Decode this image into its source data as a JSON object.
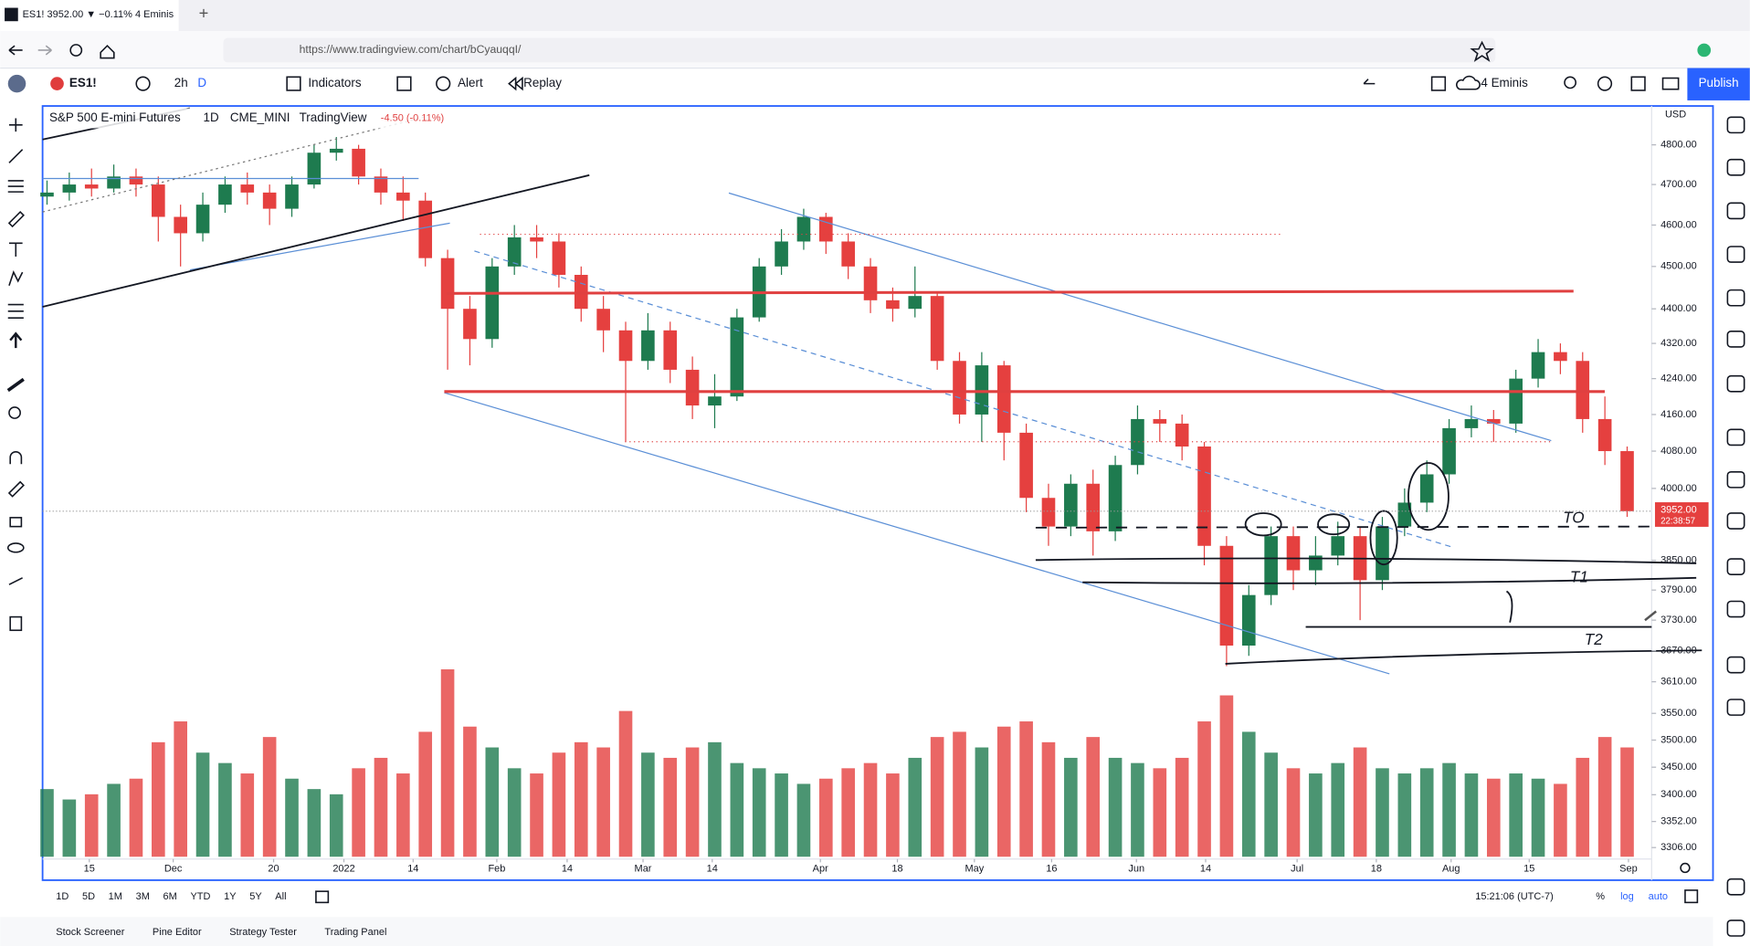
{
  "browser": {
    "tab_title": "ES1! 3952.00 ▼ −0.11% 4 Eminis",
    "url": "https://www.tradingview.com/chart/bCyauqqI/"
  },
  "toolbar": {
    "symbol": "ES1!",
    "interval": "2h",
    "interval_alt": "D",
    "indicators": "Indicators",
    "alert": "Alert",
    "replay": "Replay",
    "layout": "4 Eminis",
    "publish": "Publish"
  },
  "chart_data": {
    "type": "candlestick",
    "title": "S&P 500 E-mini Futures",
    "interval": "1D",
    "exchange": "CME_MINI",
    "source": "TradingView",
    "change": "-4.50 (-0.11%)",
    "currency": "USD",
    "open": [
      4670,
      4680,
      4700,
      4690,
      4720,
      4700,
      4620,
      4580,
      4650,
      4700,
      4680,
      4640,
      4700,
      4780,
      4790,
      4720,
      4680,
      4660,
      4520,
      4400,
      4330,
      4500,
      4570,
      4560,
      4480,
      4400,
      4350,
      4280,
      4350,
      4260,
      4180,
      4200,
      4380,
      4500,
      4560,
      4620,
      4560,
      4500,
      4420,
      4400,
      4430,
      4280,
      4160,
      4270,
      4120,
      3980,
      3920,
      4010,
      3910,
      4050,
      4150,
      4140,
      4090,
      3880,
      3680,
      3780,
      3900,
      3830,
      3860,
      3900,
      3810,
      3920,
      3970,
      4030,
      4130,
      4150,
      4140,
      4240,
      4300,
      4280,
      4150,
      4080
    ],
    "high": [
      4710,
      4730,
      4740,
      4750,
      4740,
      4720,
      4650,
      4680,
      4720,
      4730,
      4700,
      4720,
      4800,
      4820,
      4800,
      4740,
      4720,
      4680,
      4540,
      4430,
      4520,
      4600,
      4600,
      4580,
      4500,
      4430,
      4370,
      4390,
      4370,
      4290,
      4250,
      4400,
      4520,
      4590,
      4640,
      4630,
      4580,
      4520,
      4450,
      4500,
      4440,
      4300,
      4300,
      4280,
      4140,
      4010,
      4030,
      4040,
      4070,
      4180,
      4170,
      4160,
      4100,
      3900,
      3800,
      3920,
      3920,
      3900,
      3930,
      3920,
      3940,
      4000,
      4060,
      4150,
      4180,
      4170,
      4260,
      4330,
      4320,
      4300,
      4200,
      4090
    ],
    "low": [
      4650,
      4660,
      4670,
      4680,
      4670,
      4560,
      4500,
      4560,
      4630,
      4650,
      4600,
      4620,
      4690,
      4760,
      4700,
      4650,
      4610,
      4500,
      4260,
      4270,
      4310,
      4480,
      4520,
      4450,
      4370,
      4300,
      4100,
      4260,
      4230,
      4150,
      4130,
      4190,
      4370,
      4480,
      4540,
      4530,
      4470,
      4390,
      4370,
      4380,
      4260,
      4140,
      4100,
      4060,
      3950,
      3880,
      3900,
      3860,
      3890,
      4030,
      4100,
      4060,
      3840,
      3640,
      3660,
      3760,
      3790,
      3800,
      3840,
      3730,
      3790,
      3900,
      3950,
      4010,
      4110,
      4100,
      4120,
      4220,
      4250,
      4120,
      4050,
      3940
    ],
    "close": [
      4680,
      4700,
      4690,
      4720,
      4700,
      4620,
      4580,
      4650,
      4700,
      4680,
      4640,
      4700,
      4780,
      4790,
      4720,
      4680,
      4660,
      4520,
      4400,
      4330,
      4500,
      4570,
      4560,
      4480,
      4400,
      4350,
      4280,
      4350,
      4260,
      4180,
      4200,
      4380,
      4500,
      4560,
      4620,
      4560,
      4500,
      4420,
      4400,
      4430,
      4280,
      4160,
      4270,
      4120,
      3980,
      3920,
      4010,
      3910,
      4050,
      4150,
      4140,
      4090,
      3880,
      3680,
      3780,
      3900,
      3830,
      3860,
      3900,
      3810,
      3920,
      3970,
      4030,
      4130,
      4150,
      4140,
      4240,
      4300,
      4280,
      4150,
      4080,
      3952
    ],
    "volume": [
      1300,
      1100,
      1200,
      1400,
      1500,
      2200,
      2600,
      2000,
      1800,
      1600,
      2300,
      1500,
      1300,
      1200,
      1700,
      1900,
      1600,
      2400,
      3600,
      2500,
      2100,
      1700,
      1600,
      2000,
      2200,
      2100,
      2800,
      2000,
      1900,
      2100,
      2200,
      1800,
      1700,
      1600,
      1400,
      1500,
      1700,
      1800,
      1600,
      1900,
      2300,
      2400,
      2100,
      2500,
      2600,
      2200,
      1900,
      2300,
      1900,
      1800,
      1700,
      1900,
      2600,
      3100,
      2400,
      2000,
      1700,
      1600,
      1800,
      2100,
      1700,
      1600,
      1700,
      1800,
      1600,
      1500,
      1600,
      1500,
      1400,
      1900,
      2300,
      2100
    ],
    "up_color": "#1e7b4f",
    "down_color": "#e5403f",
    "log": true,
    "ylim": [
      3286,
      4900
    ],
    "yticks": [
      {
        "value": 4800,
        "label": "4800.00"
      },
      {
        "value": 4700,
        "label": "4700.00"
      },
      {
        "value": 4600,
        "label": "4600.00"
      },
      {
        "value": 4500,
        "label": "4500.00"
      },
      {
        "value": 4400,
        "label": "4400.00"
      },
      {
        "value": 4320,
        "label": "4320.00"
      },
      {
        "value": 4240,
        "label": "4240.00"
      },
      {
        "value": 4160,
        "label": "4160.00"
      },
      {
        "value": 4080,
        "label": "4080.00"
      },
      {
        "value": 4000,
        "label": "4000.00"
      },
      {
        "value": 3850,
        "label": "3850.00"
      },
      {
        "value": 3790,
        "label": "3790.00"
      },
      {
        "value": 3730,
        "label": "3730.00"
      },
      {
        "value": 3670,
        "label": "3670.00"
      },
      {
        "value": 3610,
        "label": "3610.00"
      },
      {
        "value": 3550,
        "label": "3550.00"
      },
      {
        "value": 3500,
        "label": "3500.00"
      },
      {
        "value": 3450,
        "label": "3450.00"
      },
      {
        "value": 3400,
        "label": "3400.00"
      },
      {
        "value": 3352,
        "label": "3352.00"
      },
      {
        "value": 3306,
        "label": "3306.00"
      }
    ],
    "xlim": [
      -0.2,
      72.1
    ],
    "xticks": [
      {
        "value": 1.9,
        "label": "15"
      },
      {
        "value": 5.67,
        "label": "Dec"
      },
      {
        "value": 10.18,
        "label": "20"
      },
      {
        "value": 13.34,
        "label": "2022"
      },
      {
        "value": 16.45,
        "label": "14"
      },
      {
        "value": 20.21,
        "label": "Feb"
      },
      {
        "value": 23.37,
        "label": "14"
      },
      {
        "value": 26.78,
        "label": "Mar"
      },
      {
        "value": 29.89,
        "label": "14"
      },
      {
        "value": 34.75,
        "label": "Apr"
      },
      {
        "value": 38.21,
        "label": "18"
      },
      {
        "value": 41.67,
        "label": "May"
      },
      {
        "value": 45.14,
        "label": "16"
      },
      {
        "value": 48.95,
        "label": "Jun"
      },
      {
        "value": 52.06,
        "label": "14"
      },
      {
        "value": 56.17,
        "label": "Jul"
      },
      {
        "value": 59.73,
        "label": "18"
      },
      {
        "value": 63.09,
        "label": "Aug"
      },
      {
        "value": 66.6,
        "label": "15"
      },
      {
        "value": 71.06,
        "label": "Sep"
      }
    ],
    "price_label": "3952.00",
    "countdown": "22:38:57",
    "annotations": [
      "TO",
      "T1",
      "T2"
    ]
  },
  "bottom_bar": {
    "ranges": [
      "1D",
      "5D",
      "1M",
      "3M",
      "6M",
      "YTD",
      "1Y",
      "5Y",
      "All"
    ],
    "time": "15:21:06 (UTC-7)",
    "percent": "%",
    "log": "log",
    "auto": "auto"
  },
  "panels": [
    "Stock Screener",
    "Pine Editor",
    "Strategy Tester",
    "Trading Panel"
  ]
}
